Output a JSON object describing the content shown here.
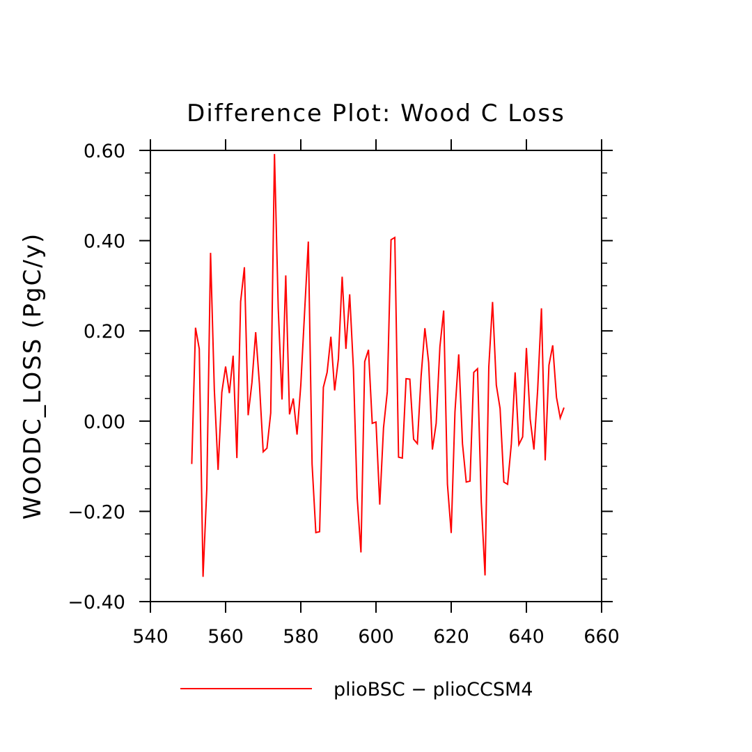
{
  "chart_data": {
    "type": "line",
    "title": "Difference Plot: Wood C Loss",
    "xlabel": "",
    "ylabel": "WOODC_LOSS (PgC/y)",
    "xlim": [
      540,
      660
    ],
    "ylim": [
      -0.4,
      0.6
    ],
    "x_ticks": [
      540,
      560,
      580,
      600,
      620,
      640,
      660
    ],
    "x_tick_labels": [
      "540",
      "560",
      "580",
      "600",
      "620",
      "640",
      "660"
    ],
    "y_ticks": [
      -0.4,
      -0.2,
      0.0,
      0.2,
      0.4,
      0.6
    ],
    "y_tick_labels": [
      "−0.40",
      "−0.20",
      "0.00",
      "0.20",
      "0.40",
      "0.60"
    ],
    "grid": false,
    "legend_position": "bottom-center",
    "series": [
      {
        "name": "plioBSC − plioCCSM4",
        "color": "#ff0000",
        "x": [
          551,
          552,
          553,
          554,
          555,
          556,
          557,
          558,
          559,
          560,
          561,
          562,
          563,
          564,
          565,
          566,
          567,
          568,
          569,
          570,
          571,
          572,
          573,
          574,
          575,
          576,
          577,
          578,
          579,
          580,
          581,
          582,
          583,
          584,
          585,
          586,
          587,
          588,
          589,
          590,
          591,
          592,
          593,
          594,
          595,
          596,
          597,
          598,
          599,
          600,
          601,
          602,
          603,
          604,
          605,
          606,
          607,
          608,
          609,
          610,
          611,
          612,
          613,
          614,
          615,
          616,
          617,
          618,
          619,
          620,
          621,
          622,
          623,
          624,
          625,
          626,
          627,
          628,
          629,
          630,
          631,
          632,
          633,
          634,
          635,
          636,
          637,
          638,
          639,
          640,
          641,
          642,
          643,
          644,
          645,
          646,
          647,
          648,
          649,
          650
        ],
        "values": [
          -0.095,
          0.207,
          0.16,
          -0.345,
          -0.15,
          0.373,
          0.07,
          -0.108,
          0.064,
          0.121,
          0.062,
          0.145,
          -0.082,
          0.265,
          0.341,
          0.013,
          0.085,
          0.197,
          0.082,
          -0.068,
          -0.06,
          0.018,
          0.592,
          0.25,
          0.048,
          0.323,
          0.015,
          0.05,
          -0.03,
          0.08,
          0.24,
          0.398,
          -0.095,
          -0.247,
          -0.245,
          0.075,
          0.108,
          0.187,
          0.068,
          0.138,
          0.32,
          0.16,
          0.281,
          0.115,
          -0.17,
          -0.291,
          0.132,
          0.158,
          -0.005,
          -0.002,
          -0.185,
          -0.015,
          0.065,
          0.402,
          0.407,
          -0.08,
          -0.082,
          0.094,
          0.093,
          -0.04,
          -0.05,
          0.1,
          0.206,
          0.13,
          -0.063,
          -0.005,
          0.165,
          0.245,
          -0.14,
          -0.248,
          0.02,
          0.148,
          -0.05,
          -0.135,
          -0.133,
          0.108,
          0.116,
          -0.18,
          -0.342,
          0.12,
          0.264,
          0.08,
          0.028,
          -0.135,
          -0.14,
          -0.05,
          0.108,
          -0.052,
          -0.035,
          0.162,
          0.005,
          -0.063,
          0.07,
          0.25,
          -0.087,
          0.124,
          0.168,
          0.053,
          0.007,
          0.03
        ]
      }
    ]
  }
}
